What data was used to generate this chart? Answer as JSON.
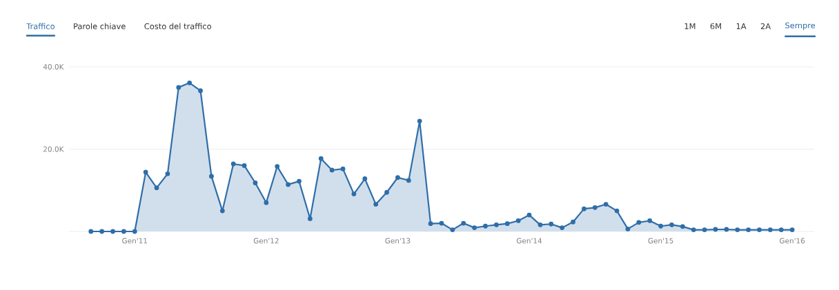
{
  "chart_data": {
    "type": "area",
    "x": [
      "2010-09",
      "2010-10",
      "2010-11",
      "2010-12",
      "2011-01",
      "2011-02",
      "2011-03",
      "2011-04",
      "2011-05",
      "2011-06",
      "2011-07",
      "2011-08",
      "2011-09",
      "2011-10",
      "2011-11",
      "2011-12",
      "2012-01",
      "2012-02",
      "2012-03",
      "2012-04",
      "2012-05",
      "2012-06",
      "2012-07",
      "2012-08",
      "2012-09",
      "2012-10",
      "2012-11",
      "2012-12",
      "2013-01",
      "2013-02",
      "2013-03",
      "2013-04",
      "2013-05",
      "2013-06",
      "2013-07",
      "2013-08",
      "2013-09",
      "2013-10",
      "2013-11",
      "2013-12",
      "2014-01",
      "2014-02",
      "2014-03",
      "2014-04",
      "2014-05",
      "2014-06",
      "2014-07",
      "2014-08",
      "2014-09",
      "2014-10",
      "2014-11",
      "2014-12",
      "2015-01",
      "2015-02",
      "2015-03",
      "2015-04",
      "2015-05",
      "2015-06",
      "2015-07",
      "2015-08",
      "2015-09",
      "2015-10",
      "2015-11",
      "2015-12",
      "2016-01"
    ],
    "series": [
      {
        "color": "#2f6ea8",
        "values": [
          0,
          0,
          0,
          0,
          0,
          14400,
          10600,
          14000,
          35000,
          36100,
          34200,
          13400,
          5000,
          16400,
          16000,
          11800,
          7000,
          15800,
          11400,
          12200,
          3100,
          17700,
          14900,
          15200,
          9100,
          12800,
          6600,
          9500,
          13100,
          12400,
          26800,
          1900,
          2000,
          400,
          2000,
          900,
          1300,
          1600,
          1900,
          2600,
          4000,
          1600,
          1800,
          900,
          2300,
          5500,
          5800,
          6600,
          5000,
          600,
          2200,
          2600,
          1300,
          1600,
          1200,
          400,
          400,
          500,
          500,
          400,
          400,
          400,
          400,
          400,
          400
        ]
      }
    ],
    "xlim": [
      "2010-07",
      "2016-03"
    ],
    "xticks": [
      {
        "value": "2011-01",
        "label": "Gen'11"
      },
      {
        "value": "2012-01",
        "label": "Gen'12"
      },
      {
        "value": "2013-01",
        "label": "Gen'13"
      },
      {
        "value": "2014-01",
        "label": "Gen'14"
      },
      {
        "value": "2015-01",
        "label": "Gen'15"
      },
      {
        "value": "2016-01",
        "label": "Gen'16"
      }
    ],
    "ylim": [
      0,
      40000
    ],
    "yticks": [
      {
        "value": 0,
        "label": null
      },
      {
        "value": 20000,
        "label": "20.0K"
      },
      {
        "value": 40000,
        "label": "40.0K"
      }
    ],
    "grid": "y",
    "marker": "circle",
    "annotations": [
      "Traffico",
      "Parole chiave",
      "Costo del traffico",
      "1M",
      "6M",
      "1A",
      "2A",
      "Sempre"
    ]
  }
}
